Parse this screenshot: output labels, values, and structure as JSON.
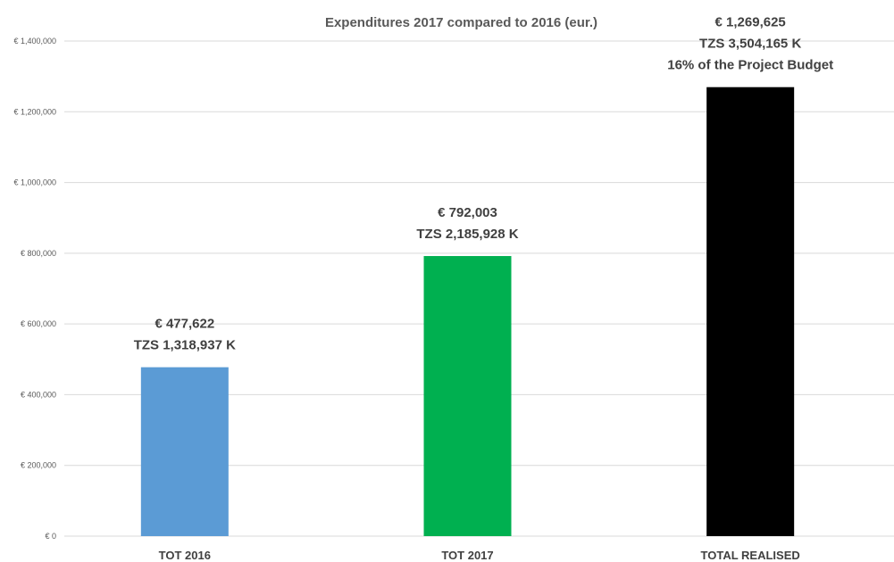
{
  "chart_data": {
    "type": "bar",
    "title": "Expenditures 2017 compared to 2016 (eur.)",
    "xlabel": "",
    "ylabel": "",
    "categories": [
      "TOT 2016",
      "TOT 2017",
      "TOTAL REALISED"
    ],
    "values": [
      477622,
      792003,
      1269625
    ],
    "colors": [
      "#5b9bd5",
      "#00b050",
      "#000000"
    ],
    "data_labels": [
      [
        "€ 477,622",
        "TZS 1,318,937 K"
      ],
      [
        "€ 792,003",
        "TZS 2,185,928 K"
      ],
      [
        "€ 1,269,625",
        "TZS 3,504,165 K",
        "16% of the Project Budget"
      ]
    ],
    "ylim": [
      0,
      1400000
    ],
    "yticks": [
      0,
      200000,
      400000,
      600000,
      800000,
      1000000,
      1200000,
      1400000
    ],
    "ytick_labels": [
      "€ 0",
      "€ 200,000",
      "€ 400,000",
      "€ 600,000",
      "€ 800,000",
      "€ 1,000,000",
      "€ 1,200,000",
      "€ 1,400,000"
    ],
    "grid": true,
    "legend": "none",
    "gridline_color": "#d9d9d9"
  }
}
